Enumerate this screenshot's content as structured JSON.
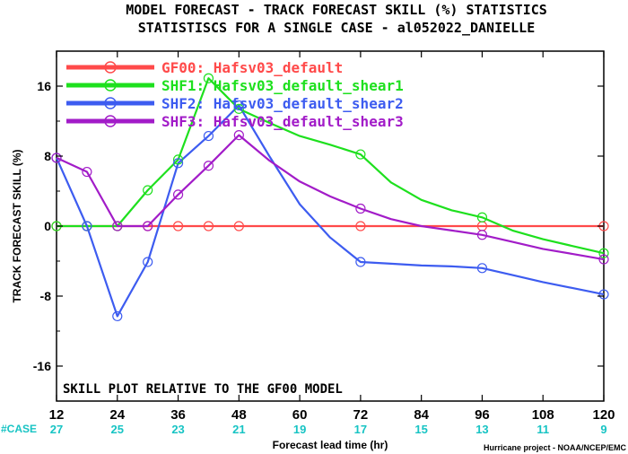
{
  "chart_data": {
    "type": "line",
    "title": "MODEL FORECAST - TRACK FORECAST SKILL (%) STATISTICS",
    "subtitle": "STATISTISCS FOR A SINGLE CASE - al052022_DANIELLE",
    "xlabel": "Forecast lead time (hr)",
    "ylabel": "TRACK FORECAST SKILL (%)",
    "annotation": "SKILL PLOT RELATIVE TO THE GF00 MODEL",
    "credit": "Hurricane project - NOAA/NCEP/EMC",
    "case_label": "#CASE",
    "xlim": [
      12,
      120
    ],
    "ylim": [
      -20,
      20
    ],
    "x_ticks": [
      "12",
      "24",
      "36",
      "48",
      "60",
      "72",
      "84",
      "96",
      "108",
      "120"
    ],
    "y_ticks": [
      "16",
      "8",
      "0",
      "-8",
      "-16"
    ],
    "case_counts": [
      "27",
      "25",
      "23",
      "21",
      "19",
      "17",
      "15",
      "13",
      "11",
      "9"
    ],
    "colors": {
      "case_counts": "#18c4c4"
    },
    "grid": false,
    "legend_position": "top-left",
    "series": [
      {
        "name": "GF00: Hafsv03_default",
        "color": "#ff4a4a",
        "x": [
          12,
          18,
          24,
          30,
          36,
          42,
          48,
          54,
          60,
          66,
          72,
          78,
          84,
          90,
          96,
          102,
          108,
          114,
          120
        ],
        "y": [
          0,
          0,
          0,
          0,
          0,
          0,
          0,
          0,
          0,
          0,
          0,
          0,
          0,
          0,
          0,
          0,
          0,
          0,
          0
        ],
        "markers_x": [
          12,
          18,
          24,
          30,
          36,
          42,
          48,
          72,
          96,
          120
        ]
      },
      {
        "name": "SHF1: Hafsv03_default_shear1",
        "color": "#1ee01e",
        "x": [
          12,
          18,
          24,
          30,
          36,
          42,
          48,
          54,
          60,
          66,
          72,
          78,
          84,
          90,
          96,
          102,
          108,
          114,
          120
        ],
        "y": [
          0,
          0,
          0,
          4.1,
          7.6,
          16.9,
          13.4,
          11.8,
          10.3,
          9.3,
          8.2,
          5.0,
          3.0,
          1.8,
          1.0,
          -0.5,
          -1.5,
          -2.3,
          -3.1
        ],
        "markers_x": [
          12,
          18,
          24,
          30,
          36,
          42,
          48,
          72,
          96,
          120
        ]
      },
      {
        "name": "SHF2: Hafsv03_default_shear2",
        "color": "#3d5cf0",
        "x": [
          12,
          18,
          24,
          30,
          36,
          42,
          48,
          54,
          60,
          66,
          72,
          78,
          84,
          90,
          96,
          102,
          108,
          114,
          120
        ],
        "y": [
          7.8,
          0,
          -10.3,
          -4.1,
          7.2,
          10.3,
          13.8,
          8.0,
          2.5,
          -1.3,
          -4.1,
          -4.3,
          -4.5,
          -4.6,
          -4.8,
          -5.6,
          -6.4,
          -7.1,
          -7.8
        ],
        "markers_x": [
          12,
          18,
          24,
          30,
          36,
          42,
          48,
          72,
          96,
          120
        ]
      },
      {
        "name": "SHF3: Hafsv03_default_shear3",
        "color": "#a21cc8",
        "x": [
          12,
          18,
          24,
          30,
          36,
          42,
          48,
          54,
          60,
          66,
          72,
          78,
          84,
          90,
          96,
          102,
          108,
          114,
          120
        ],
        "y": [
          7.8,
          6.2,
          0,
          0,
          3.6,
          6.9,
          10.4,
          7.5,
          5.1,
          3.4,
          2.0,
          0.8,
          0,
          -0.5,
          -1.0,
          -1.8,
          -2.6,
          -3.2,
          -3.8
        ],
        "markers_x": [
          12,
          18,
          24,
          30,
          36,
          42,
          48,
          72,
          96,
          120
        ]
      }
    ]
  }
}
